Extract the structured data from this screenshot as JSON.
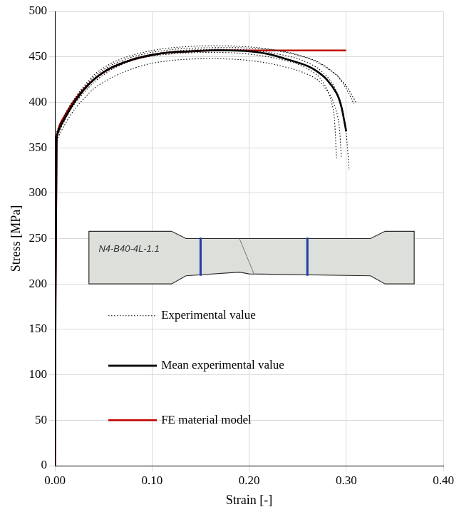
{
  "chart_data": {
    "type": "line",
    "x_label": "Strain [-]",
    "y_label": "Stress [MPa]",
    "annotations": [
      "N4-B40-4L-1.1"
    ],
    "xlim": [
      0,
      0.4
    ],
    "xticks": [
      {
        "value": 0,
        "label": "0.00"
      },
      {
        "value": 0.1,
        "label": "0.10"
      },
      {
        "value": 0.2,
        "label": "0.20"
      },
      {
        "value": 0.3,
        "label": "0.30"
      },
      {
        "value": 0.4,
        "label": "0.40"
      }
    ],
    "ylim": [
      0,
      500
    ],
    "yticks": [
      0,
      50,
      100,
      150,
      200,
      250,
      300,
      350,
      400,
      450,
      500
    ],
    "grid": true,
    "legend": "center",
    "series": [
      {
        "name": "Experimental value",
        "color": "#000000",
        "line_style": "dotted",
        "x": [
          0,
          0.0017,
          0.01,
          0.02,
          0.04,
          0.06,
          0.08,
          0.1,
          0.12,
          0.15,
          0.18,
          0.21,
          0.24,
          0.27,
          0.29,
          0.3,
          0.308
        ],
        "values": [
          0,
          362,
          386,
          404,
          430,
          444,
          452,
          457,
          460,
          462,
          462,
          460,
          455,
          445,
          430,
          415,
          398
        ]
      },
      {
        "name": "Experimental value",
        "color": "#000000",
        "line_style": "dotted",
        "x": [
          0,
          0.0017,
          0.01,
          0.02,
          0.04,
          0.06,
          0.08,
          0.1,
          0.13,
          0.16,
          0.19,
          0.22,
          0.25,
          0.27,
          0.285,
          0.292,
          0.295
        ],
        "values": [
          0,
          355,
          375,
          392,
          415,
          428,
          437,
          443,
          447,
          448,
          447,
          443,
          435,
          425,
          405,
          380,
          340
        ]
      },
      {
        "name": "Experimental value",
        "color": "#000000",
        "line_style": "dotted",
        "x": [
          0,
          0.0017,
          0.01,
          0.02,
          0.04,
          0.06,
          0.08,
          0.1,
          0.13,
          0.16,
          0.19,
          0.22,
          0.25,
          0.27,
          0.285,
          0.295,
          0.3,
          0.303
        ],
        "values": [
          0,
          360,
          382,
          400,
          425,
          440,
          448,
          453,
          457,
          458,
          458,
          455,
          448,
          438,
          422,
          398,
          365,
          325
        ]
      },
      {
        "name": "Experimental value",
        "color": "#000000",
        "line_style": "dotted",
        "x": [
          0,
          0.0017,
          0.01,
          0.02,
          0.04,
          0.06,
          0.08,
          0.1,
          0.13,
          0.16,
          0.19,
          0.22,
          0.25,
          0.27,
          0.28,
          0.287,
          0.29
        ],
        "values": [
          0,
          358,
          380,
          398,
          422,
          437,
          446,
          451,
          454,
          455,
          454,
          450,
          442,
          430,
          415,
          390,
          338
        ]
      },
      {
        "name": "Experimental value",
        "color": "#000000",
        "line_style": "dotted",
        "x": [
          0,
          0.0017,
          0.01,
          0.02,
          0.04,
          0.06,
          0.08,
          0.1,
          0.13,
          0.16,
          0.19,
          0.22,
          0.25,
          0.27,
          0.29,
          0.3,
          0.31
        ],
        "values": [
          0,
          365,
          385,
          403,
          428,
          442,
          450,
          455,
          459,
          460,
          460,
          458,
          452,
          444,
          430,
          418,
          400
        ]
      },
      {
        "name": "Mean experimental value",
        "color": "#000000",
        "line_style": "solid",
        "x": [
          0,
          0.0017,
          0.005,
          0.01,
          0.02,
          0.03,
          0.04,
          0.05,
          0.06,
          0.08,
          0.1,
          0.12,
          0.14,
          0.16,
          0.18,
          0.2,
          0.22,
          0.24,
          0.26,
          0.27,
          0.28,
          0.29,
          0.295,
          0.3
        ],
        "values": [
          0,
          360,
          372,
          382,
          400,
          414,
          425,
          433,
          439,
          447,
          452,
          455,
          456,
          457,
          457,
          456,
          453,
          447,
          440,
          434,
          425,
          410,
          395,
          368
        ]
      },
      {
        "name": "FE material model",
        "color": "#c00000",
        "line_style": "solid",
        "x": [
          0,
          0.0017,
          0.005,
          0.01,
          0.02,
          0.03,
          0.04,
          0.05,
          0.06,
          0.08,
          0.1,
          0.12,
          0.14,
          0.16,
          0.3
        ],
        "values": [
          0,
          360,
          375,
          385,
          402,
          415,
          425,
          433,
          439,
          447,
          452,
          455,
          456,
          457,
          457
        ]
      }
    ]
  }
}
